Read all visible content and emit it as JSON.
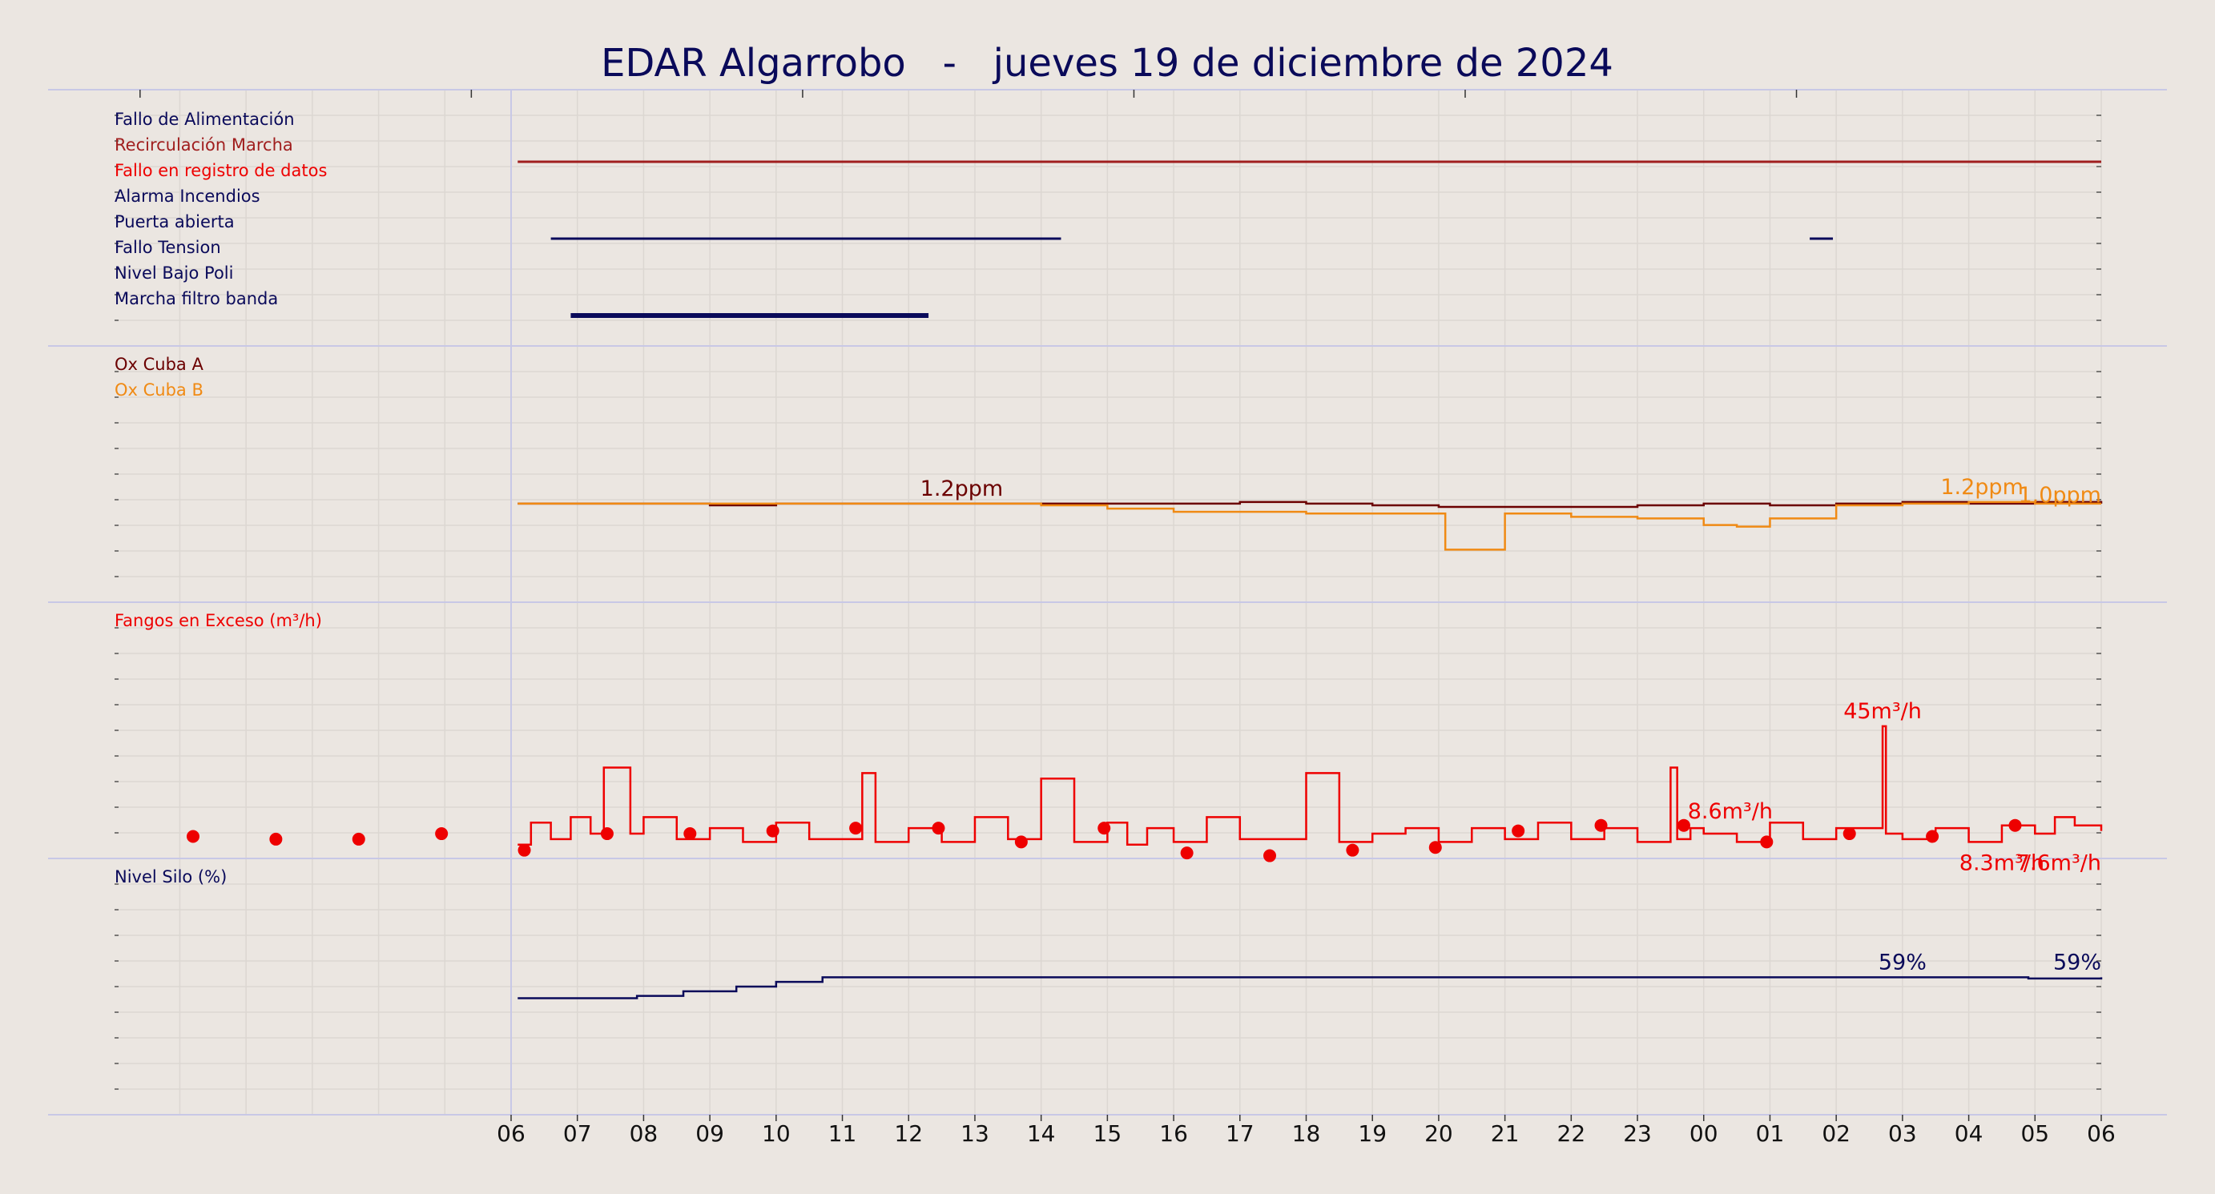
{
  "title": "EDAR Algarrobo   -   jueves 19 de diciembre de 2024",
  "colors": {
    "background": "#ebe6e1",
    "navy": "#0a0a5a",
    "darkred": "#6b0000",
    "red": "#ee0000",
    "orange": "#f08a14",
    "grid": "#dcd7d2",
    "separator": "#c8c8e6"
  },
  "chart_data": {
    "type": "line",
    "x_ticks": [
      "06",
      "07",
      "08",
      "09",
      "10",
      "11",
      "12",
      "13",
      "14",
      "15",
      "16",
      "17",
      "18",
      "19",
      "20",
      "21",
      "22",
      "23",
      "00",
      "01",
      "02",
      "03",
      "04",
      "05",
      "06"
    ],
    "x_range_hours": [
      0,
      24
    ],
    "panels": [
      {
        "id": "alarms",
        "type": "timeline",
        "rows": [
          {
            "label": "Fallo de Alimentación",
            "color": "#0a0a5a",
            "segments": []
          },
          {
            "label": "Recirculación Marcha",
            "color": "#a01e1e",
            "segments": [
              [
                0.1,
                24.0
              ]
            ]
          },
          {
            "label": "Fallo en registro de datos",
            "color": "#ee0000",
            "segments": []
          },
          {
            "label": "Alarma Incendios",
            "color": "#0a0a5a",
            "segments": []
          },
          {
            "label": "Puerta abierta",
            "color": "#0a0a5a",
            "segments": [
              [
                0.6,
                8.3
              ],
              [
                19.6,
                19.95
              ]
            ]
          },
          {
            "label": "Fallo Tension",
            "color": "#0a0a5a",
            "segments": []
          },
          {
            "label": "Nivel Bajo Poli",
            "color": "#0a0a5a",
            "segments": []
          },
          {
            "label": "Marcha filtro banda",
            "color": "#0a0a5a",
            "segments": [
              [
                0.9,
                6.3
              ]
            ]
          }
        ]
      },
      {
        "id": "oxygen",
        "type": "line",
        "series": [
          {
            "name": "Ox Cuba A",
            "color": "#6b0000",
            "unit": "ppm",
            "x": [
              0.1,
              1.0,
              2.0,
              3.0,
              4.0,
              5.0,
              6.0,
              7.0,
              8.0,
              9.0,
              10.0,
              11.0,
              12.0,
              13.0,
              14.0,
              15.0,
              16.0,
              17.0,
              18.0,
              19.0,
              20.0,
              21.0,
              22.0,
              23.0,
              24.0
            ],
            "y": [
              1.2,
              1.2,
              1.2,
              1.15,
              1.2,
              1.2,
              1.2,
              1.2,
              1.2,
              1.2,
              1.2,
              1.25,
              1.2,
              1.15,
              1.1,
              1.1,
              1.1,
              1.15,
              1.2,
              1.15,
              1.2,
              1.25,
              1.2,
              1.25,
              1.2
            ],
            "labels": [
              {
                "x": 6.8,
                "y": 1.2,
                "text": "1.2ppm"
              }
            ]
          },
          {
            "name": "Ox Cuba B",
            "color": "#f08a14",
            "unit": "ppm",
            "x": [
              0.1,
              1.0,
              2.0,
              3.0,
              4.0,
              5.0,
              6.0,
              7.0,
              8.0,
              9.0,
              10.0,
              11.0,
              12.0,
              13.0,
              14.0,
              14.1,
              15.0,
              16.0,
              17.0,
              18.0,
              18.5,
              19.0,
              20.0,
              21.0,
              22.0,
              23.0,
              24.0
            ],
            "y": [
              1.2,
              1.2,
              1.2,
              1.2,
              1.2,
              1.2,
              1.2,
              1.2,
              1.15,
              1.05,
              0.95,
              0.95,
              0.9,
              0.9,
              0.9,
              -0.2,
              0.9,
              0.8,
              0.75,
              0.55,
              0.5,
              0.75,
              1.15,
              1.2,
              1.25,
              1.2,
              1.2
            ],
            "labels": [
              {
                "x": 22.2,
                "y": 1.25,
                "text": "1.2ppm"
              },
              {
                "x": 24.0,
                "y": 1.0,
                "text": "1.0ppm"
              }
            ]
          }
        ]
      },
      {
        "id": "sludge",
        "type": "line",
        "title": "Fangos en Exceso (m³/h)",
        "series": [
          {
            "name": "Fangos en Exceso",
            "color": "#ee0000",
            "unit": "m³/h",
            "x": [
              0.1,
              0.3,
              0.6,
              0.9,
              1.2,
              1.4,
              1.8,
              2.0,
              2.5,
              3.0,
              3.5,
              4.0,
              4.5,
              5.3,
              5.5,
              6.0,
              6.5,
              7.0,
              7.5,
              8.0,
              8.5,
              9.0,
              9.3,
              9.6,
              10.0,
              10.5,
              11.0,
              12.0,
              12.5,
              13.0,
              13.5,
              14.0,
              14.5,
              15.0,
              15.5,
              16.0,
              16.5,
              17.0,
              17.5,
              17.6,
              17.8,
              18.0,
              18.5,
              19.0,
              19.5,
              20.0,
              20.7,
              20.75,
              21.0,
              21.5,
              22.0,
              22.5,
              23.0,
              23.3,
              23.6,
              24.0
            ],
            "y": [
              2,
              10,
              4,
              12,
              6,
              30,
              6,
              12,
              4,
              8,
              3,
              10,
              4,
              28,
              3,
              8,
              3,
              12,
              4,
              26,
              3,
              10,
              2,
              8,
              3,
              12,
              4,
              28,
              3,
              6,
              8,
              3,
              8,
              4,
              10,
              4,
              8,
              3,
              30,
              4,
              8,
              6,
              3,
              10,
              4,
              8,
              45,
              6,
              4,
              8,
              3,
              9,
              6,
              12,
              9,
              7
            ],
            "labels": [
              {
                "x": 20.7,
                "y": 45,
                "text": "45m³/h"
              },
              {
                "x": 18.4,
                "y": 8.6,
                "text": "8.6m³/h"
              },
              {
                "x": 22.5,
                "y": -2,
                "text": "8.3m³/h"
              },
              {
                "x": 24.0,
                "y": -2,
                "text": "7.6m³/h"
              }
            ]
          }
        ],
        "dots": {
          "color": "#ee0000",
          "x": [
            -4.8,
            -3.55,
            -2.3,
            -1.05,
            0.2,
            1.45,
            2.7,
            3.95,
            5.2,
            6.45,
            7.7,
            8.95,
            10.2,
            11.45,
            12.7,
            13.95,
            15.2,
            16.45,
            17.7,
            18.95,
            20.2,
            21.45,
            22.7
          ],
          "y": [
            5,
            4,
            4,
            6,
            0,
            6,
            6,
            7,
            8,
            8,
            3,
            8,
            -1,
            -2,
            0,
            1,
            7,
            9,
            9,
            3,
            6,
            5,
            9
          ]
        }
      },
      {
        "id": "silo",
        "type": "line",
        "title": "Nivel Silo (%)",
        "series": [
          {
            "name": "Nivel Silo",
            "color": "#0a0a5a",
            "unit": "%",
            "x": [
              0.1,
              1.3,
              1.9,
              2.6,
              3.4,
              4.0,
              4.7,
              5.5,
              6.5,
              8.5,
              10.7,
              13.4,
              19.2,
              21.0,
              21.2,
              22.5,
              22.9,
              24.0
            ],
            "y": [
              50,
              50,
              51,
              53,
              55,
              57,
              59,
              59,
              59,
              59,
              59,
              59,
              59,
              59,
              59,
              59,
              58.5,
              59
            ],
            "labels": [
              {
                "x": 21.0,
                "y": 59,
                "text": "59%"
              },
              {
                "x": 24.0,
                "y": 59,
                "text": "59%"
              }
            ]
          }
        ]
      }
    ]
  }
}
